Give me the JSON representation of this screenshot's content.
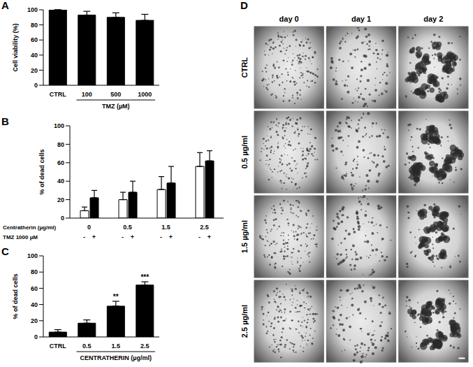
{
  "chart_data": [
    {
      "panel": "A",
      "type": "bar",
      "categories": [
        "CTRL",
        "100",
        "500",
        "1000"
      ],
      "values": [
        100,
        93,
        90,
        86
      ],
      "errors": [
        0,
        5,
        6,
        8
      ],
      "color": "#000000",
      "y_label": "Cell viability (%)",
      "x_label": "TMZ (µM)",
      "ylim": [
        0,
        100
      ],
      "yticks": [
        0,
        20,
        40,
        60,
        80,
        100
      ],
      "grid": false
    },
    {
      "panel": "B",
      "type": "bar",
      "categories": [
        "0",
        "0.5",
        "1.5",
        "2.5"
      ],
      "x_label": "Centratherin (µg/ml)",
      "series_label": "TMZ 1000 µM",
      "series": [
        {
          "name": "-",
          "color": "#ffffff",
          "values": [
            8,
            20,
            31,
            56
          ],
          "errors": [
            4,
            8,
            14,
            15
          ]
        },
        {
          "name": "+",
          "color": "#000000",
          "values": [
            22,
            28,
            38,
            62
          ],
          "errors": [
            8,
            12,
            18,
            11
          ]
        }
      ],
      "y_label": "% of dead cells",
      "ylim": [
        0,
        100
      ],
      "yticks": [
        0,
        20,
        40,
        60,
        80,
        100
      ],
      "grid": false
    },
    {
      "panel": "C",
      "type": "bar",
      "categories": [
        "CTRL",
        "0.5",
        "1.5",
        "2.5"
      ],
      "values": [
        6,
        17,
        38,
        64
      ],
      "errors": [
        3,
        4,
        6,
        4
      ],
      "annotations": [
        null,
        null,
        "**",
        "***"
      ],
      "color": "#000000",
      "y_label": "% of dead cells",
      "x_label": "CENTRATHERIN (µg/ml)",
      "ylim": [
        0,
        100
      ],
      "yticks": [
        0,
        20,
        40,
        60,
        80,
        100
      ],
      "grid": false
    }
  ],
  "image_panel": {
    "panel": "D",
    "columns": [
      "day 0",
      "day 1",
      "day 2"
    ],
    "rows": [
      "CTRL",
      "0.5 µg/ml",
      "1.5 µg/ml",
      "2.5 µg/ml"
    ]
  }
}
